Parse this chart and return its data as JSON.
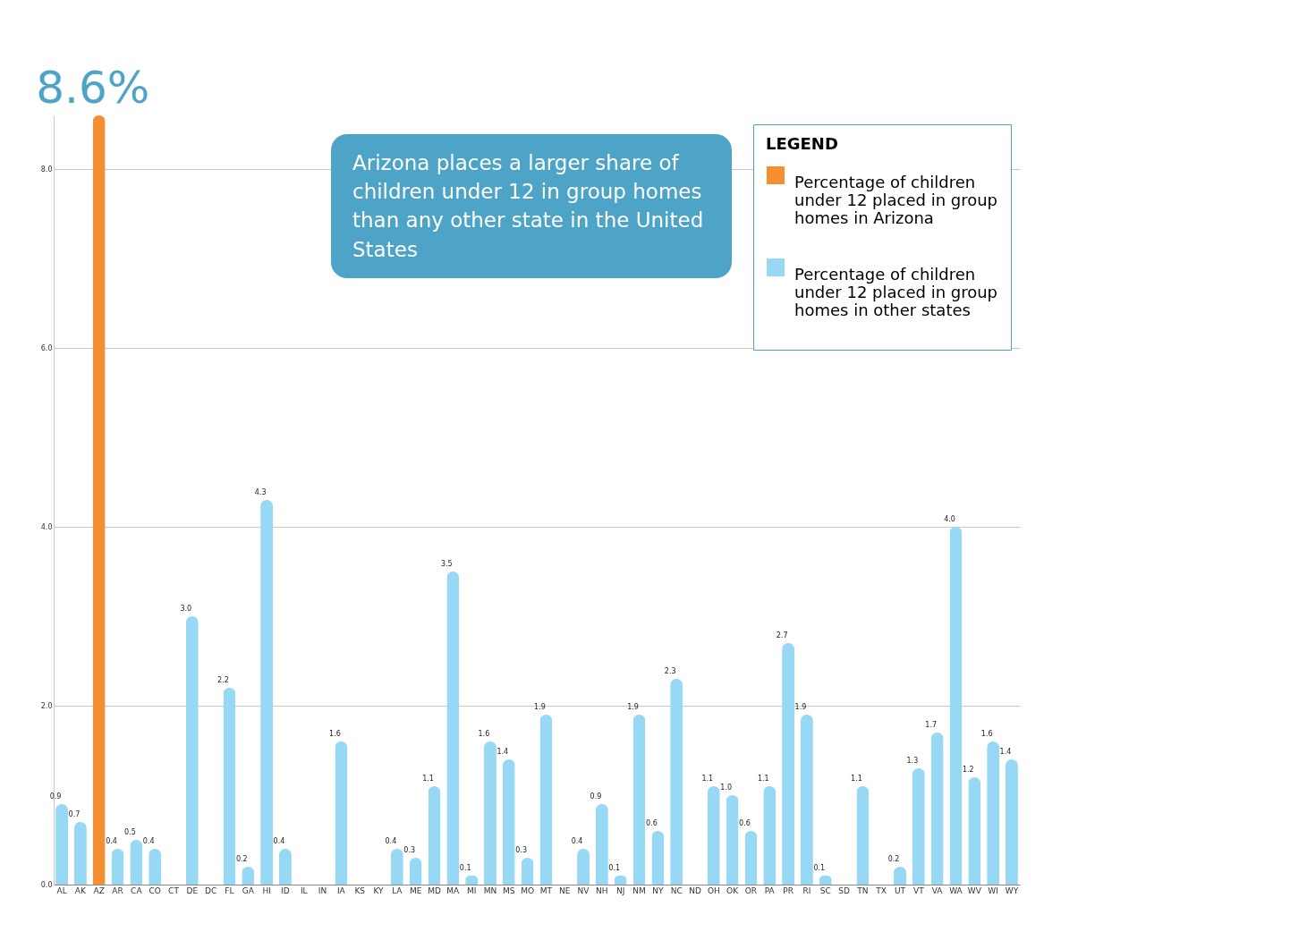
{
  "chart_data": {
    "type": "bar",
    "legend_title": "LEGEND",
    "annotations": [
      "Arizona places a larger share of children under 12 in group homes than any other state in the United States"
    ],
    "categories": [
      "AL",
      "AK",
      "AZ",
      "AR",
      "CA",
      "CO",
      "CT",
      "DE",
      "DC",
      "FL",
      "GA",
      "HI",
      "ID",
      "IL",
      "IN",
      "IA",
      "KS",
      "KY",
      "LA",
      "ME",
      "MD",
      "MA",
      "MI",
      "MN",
      "MS",
      "MO",
      "MT",
      "NE",
      "NV",
      "NH",
      "NJ",
      "NM",
      "NY",
      "NC",
      "ND",
      "OH",
      "OK",
      "OR",
      "PA",
      "PR",
      "RI",
      "SC",
      "SD",
      "TN",
      "TX",
      "UT",
      "VT",
      "VA",
      "WA",
      "WV",
      "WI",
      "WY"
    ],
    "series": [
      {
        "name": "Percentage of children under 12 placed in group homes in Arizona",
        "color": "#f68f31",
        "values": [
          null,
          null,
          8.6,
          null,
          null,
          null,
          null,
          null,
          null,
          null,
          null,
          null,
          null,
          null,
          null,
          null,
          null,
          null,
          null,
          null,
          null,
          null,
          null,
          null,
          null,
          null,
          null,
          null,
          null,
          null,
          null,
          null,
          null,
          null,
          null,
          null,
          null,
          null,
          null,
          null,
          null,
          null,
          null,
          null,
          null,
          null,
          null,
          null,
          null,
          null,
          null,
          null
        ],
        "value_labels": [
          null,
          null,
          "8.6%",
          null,
          null,
          null,
          null,
          null,
          null,
          null,
          null,
          null,
          null,
          null,
          null,
          null,
          null,
          null,
          null,
          null,
          null,
          null,
          null,
          null,
          null,
          null,
          null,
          null,
          null,
          null,
          null,
          null,
          null,
          null,
          null,
          null,
          null,
          null,
          null,
          null,
          null,
          null,
          null,
          null,
          null,
          null,
          null,
          null,
          null,
          null,
          null,
          null
        ]
      },
      {
        "name": "Percentage of children under 12 placed in group homes in other states",
        "color": "#97d8f5",
        "values": [
          0.9,
          0.7,
          null,
          0.4,
          0.5,
          0.4,
          null,
          3.0,
          null,
          2.2,
          0.2,
          4.3,
          0.4,
          null,
          null,
          1.6,
          null,
          null,
          0.4,
          0.3,
          1.1,
          3.5,
          0.1,
          1.6,
          1.4,
          0.3,
          1.9,
          null,
          0.4,
          0.9,
          0.1,
          1.9,
          0.6,
          2.3,
          null,
          1.1,
          1.0,
          0.6,
          1.1,
          2.7,
          1.9,
          0.1,
          null,
          1.1,
          null,
          0.2,
          1.3,
          1.7,
          4.0,
          1.2,
          1.6,
          1.4
        ],
        "value_labels": [
          "0.9",
          "0.7",
          null,
          "0.4",
          "0.5",
          "0.4",
          null,
          "3.0",
          null,
          "2.2",
          "0.2",
          "4.3",
          "0.4",
          null,
          null,
          "1.6",
          null,
          null,
          "0.4",
          "0.3",
          "1.1",
          "3.5",
          "0.1",
          "1.6",
          "1.4",
          "0.3",
          "1.9",
          null,
          "0.4",
          "0.9",
          "0.1",
          "1.9",
          "0.6",
          "2.3",
          null,
          "1.1",
          "1.0",
          "0.6",
          "1.1",
          "2.7",
          "1.9",
          "0.1",
          null,
          "1.1",
          null,
          "0.2",
          "1.3",
          "1.7",
          "4.0",
          "1.2",
          "1.6",
          "1.4"
        ]
      }
    ],
    "ylim": [
      0,
      8.6
    ],
    "yticks": [
      {
        "value": 0,
        "label": "0.0"
      },
      {
        "value": 2,
        "label": "2.0"
      },
      {
        "value": 4,
        "label": "4.0"
      },
      {
        "value": 6,
        "label": "6.0"
      },
      {
        "value": 8,
        "label": "8.0"
      }
    ],
    "grid": "y",
    "legend": "top right"
  }
}
